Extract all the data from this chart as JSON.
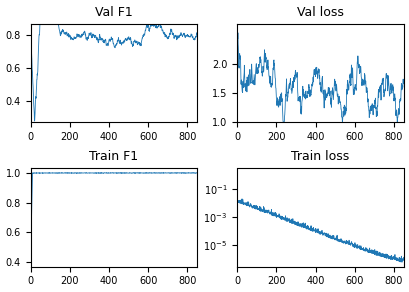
{
  "n_steps": 850,
  "title_val_f1": "Val F1",
  "title_val_loss": "Val loss",
  "title_train_f1": "Train F1",
  "title_train_loss": "Train loss",
  "line_color": "#1f77b4",
  "linewidth": 0.6,
  "figsize": [
    4.1,
    2.92
  ],
  "dpi": 100,
  "val_f1_ylim": [
    0.27,
    0.87
  ],
  "val_f1_yticks": [
    0.4,
    0.6,
    0.8
  ],
  "val_loss_ylim": [
    1.0,
    2.7
  ],
  "val_loss_yticks": [
    1.0,
    1.5,
    2.0
  ],
  "train_f1_ylim": [
    0.37,
    1.03
  ],
  "train_f1_yticks": [
    0.4,
    0.6,
    0.8,
    1.0
  ],
  "train_loss_ylim_lo": 3e-07,
  "train_loss_ylim_hi": 3.0,
  "xticks": [
    0,
    200,
    400,
    600,
    800
  ],
  "xlim": [
    0,
    850
  ]
}
